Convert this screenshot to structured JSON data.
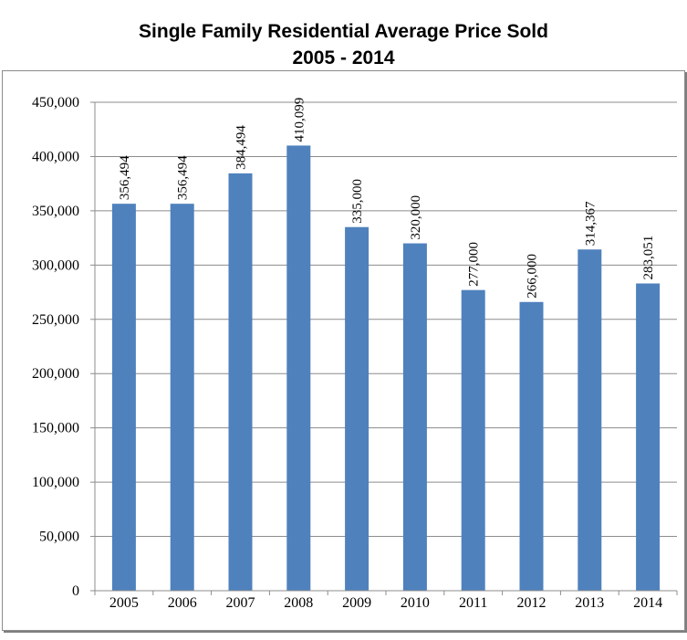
{
  "chart_data": {
    "type": "bar",
    "title": "Single Family Residential Average Price Sold",
    "subtitle": "2005 - 2014",
    "categories": [
      "2005",
      "2006",
      "2007",
      "2008",
      "2009",
      "2010",
      "2011",
      "2012",
      "2013",
      "2014"
    ],
    "values": [
      356494,
      356494,
      384494,
      410099,
      335000,
      320000,
      277000,
      266000,
      314367,
      283051
    ],
    "data_labels": [
      "356,494",
      "356,494",
      "384,494",
      "410,099",
      "335,000",
      "320,000",
      "277,000",
      "266,000",
      "314,367",
      "283,051"
    ],
    "ylim": [
      0,
      450000
    ],
    "yticks": [
      0,
      50000,
      100000,
      150000,
      200000,
      250000,
      300000,
      350000,
      400000,
      450000
    ],
    "ytick_labels": [
      "0",
      "50,000",
      "100,000",
      "150,000",
      "200,000",
      "250,000",
      "300,000",
      "350,000",
      "400,000",
      "450,000"
    ],
    "grid": true,
    "bar_color": "#4f81bd"
  }
}
